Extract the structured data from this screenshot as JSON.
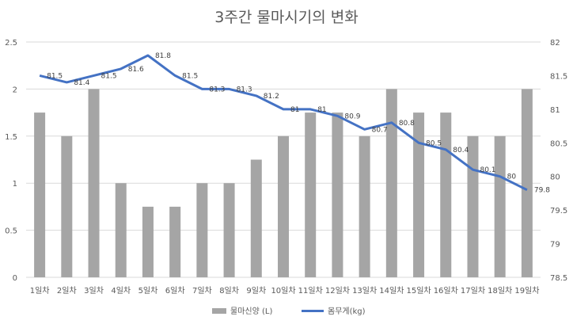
{
  "chart_data": {
    "type": "bar+line",
    "title": "3주간 물마시기의 변화",
    "categories": [
      "1일차",
      "2일차",
      "3일차",
      "4일차",
      "5일차",
      "6일차",
      "7일차",
      "8일차",
      "9일차",
      "10일차",
      "11일차",
      "12일차",
      "13일차",
      "14일차",
      "15일차",
      "16일차",
      "17일차",
      "18일차",
      "19일차"
    ],
    "series": [
      {
        "name": "물마신양 (L)",
        "type": "bar",
        "axis": "left",
        "color": "#a5a5a5",
        "values": [
          1.75,
          1.5,
          2,
          1,
          0.75,
          0.75,
          1,
          1,
          1.25,
          1.5,
          1.75,
          1.75,
          1.5,
          2,
          1.75,
          1.75,
          1.5,
          1.5,
          2
        ]
      },
      {
        "name": "몸무게(kg)",
        "type": "line",
        "axis": "right",
        "color": "#4472c4",
        "values": [
          81.5,
          81.4,
          81.5,
          81.6,
          81.8,
          81.5,
          81.3,
          81.3,
          81.2,
          81,
          81,
          80.9,
          80.7,
          80.8,
          80.5,
          80.4,
          80.1,
          80,
          79.8
        ],
        "labels": [
          "81.5",
          "81.4",
          "81.5",
          "81.6",
          "81.8",
          "81.5",
          "81.3",
          "81.3",
          "81.2",
          "81",
          "81",
          "80.9",
          "80.7",
          "80.8",
          "80.5",
          "80.4",
          "80.1",
          "80",
          "79.8"
        ]
      }
    ],
    "y_left": {
      "min": 0,
      "max": 2.5,
      "ticks": [
        "0",
        "0.5",
        "1",
        "1.5",
        "2",
        "2.5"
      ]
    },
    "y_right": {
      "min": 78.5,
      "max": 82,
      "ticks": [
        "78.5",
        "79",
        "79.5",
        "80",
        "80.5",
        "81",
        "81.5",
        "82"
      ]
    },
    "legend": "bottom",
    "grid": true
  }
}
